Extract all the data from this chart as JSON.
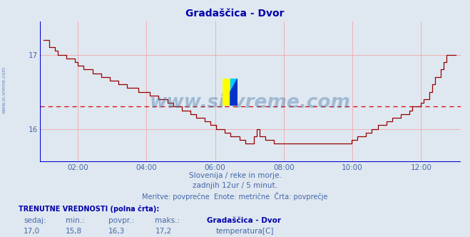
{
  "title": "Gradaščica - Dvor",
  "subtitle1": "Slovenija / reke in morje.",
  "subtitle2": "zadnjih 12ur / 5 minut.",
  "subtitle3": "Meritve: povprečne  Enote: metrične  Črta: povprečje",
  "legend_label": "temperatura[C]",
  "val_sedaj": "17,0",
  "val_min": "15,8",
  "val_povpr": "16,3",
  "val_maks": "17,2",
  "avg_line": 16.3,
  "ylim": [
    15.55,
    17.45
  ],
  "yticks": [
    16,
    17
  ],
  "xtick_labels": [
    "02:00",
    "04:00",
    "06:00",
    "08:00",
    "10:00",
    "12:00"
  ],
  "bg_color": "#dfe8f0",
  "line_color": "#990000",
  "avg_line_color": "#dd0000",
  "axis_color": "#0000cc",
  "grid_color": "#f0b0b0",
  "title_color": "#0000aa",
  "text_color": "#4466aa",
  "label_color": "#0000aa",
  "watermark_text": "www.si-vreme.com",
  "watermark_color": "#4477aa",
  "sidebar_text": "www.si-vreme.com"
}
